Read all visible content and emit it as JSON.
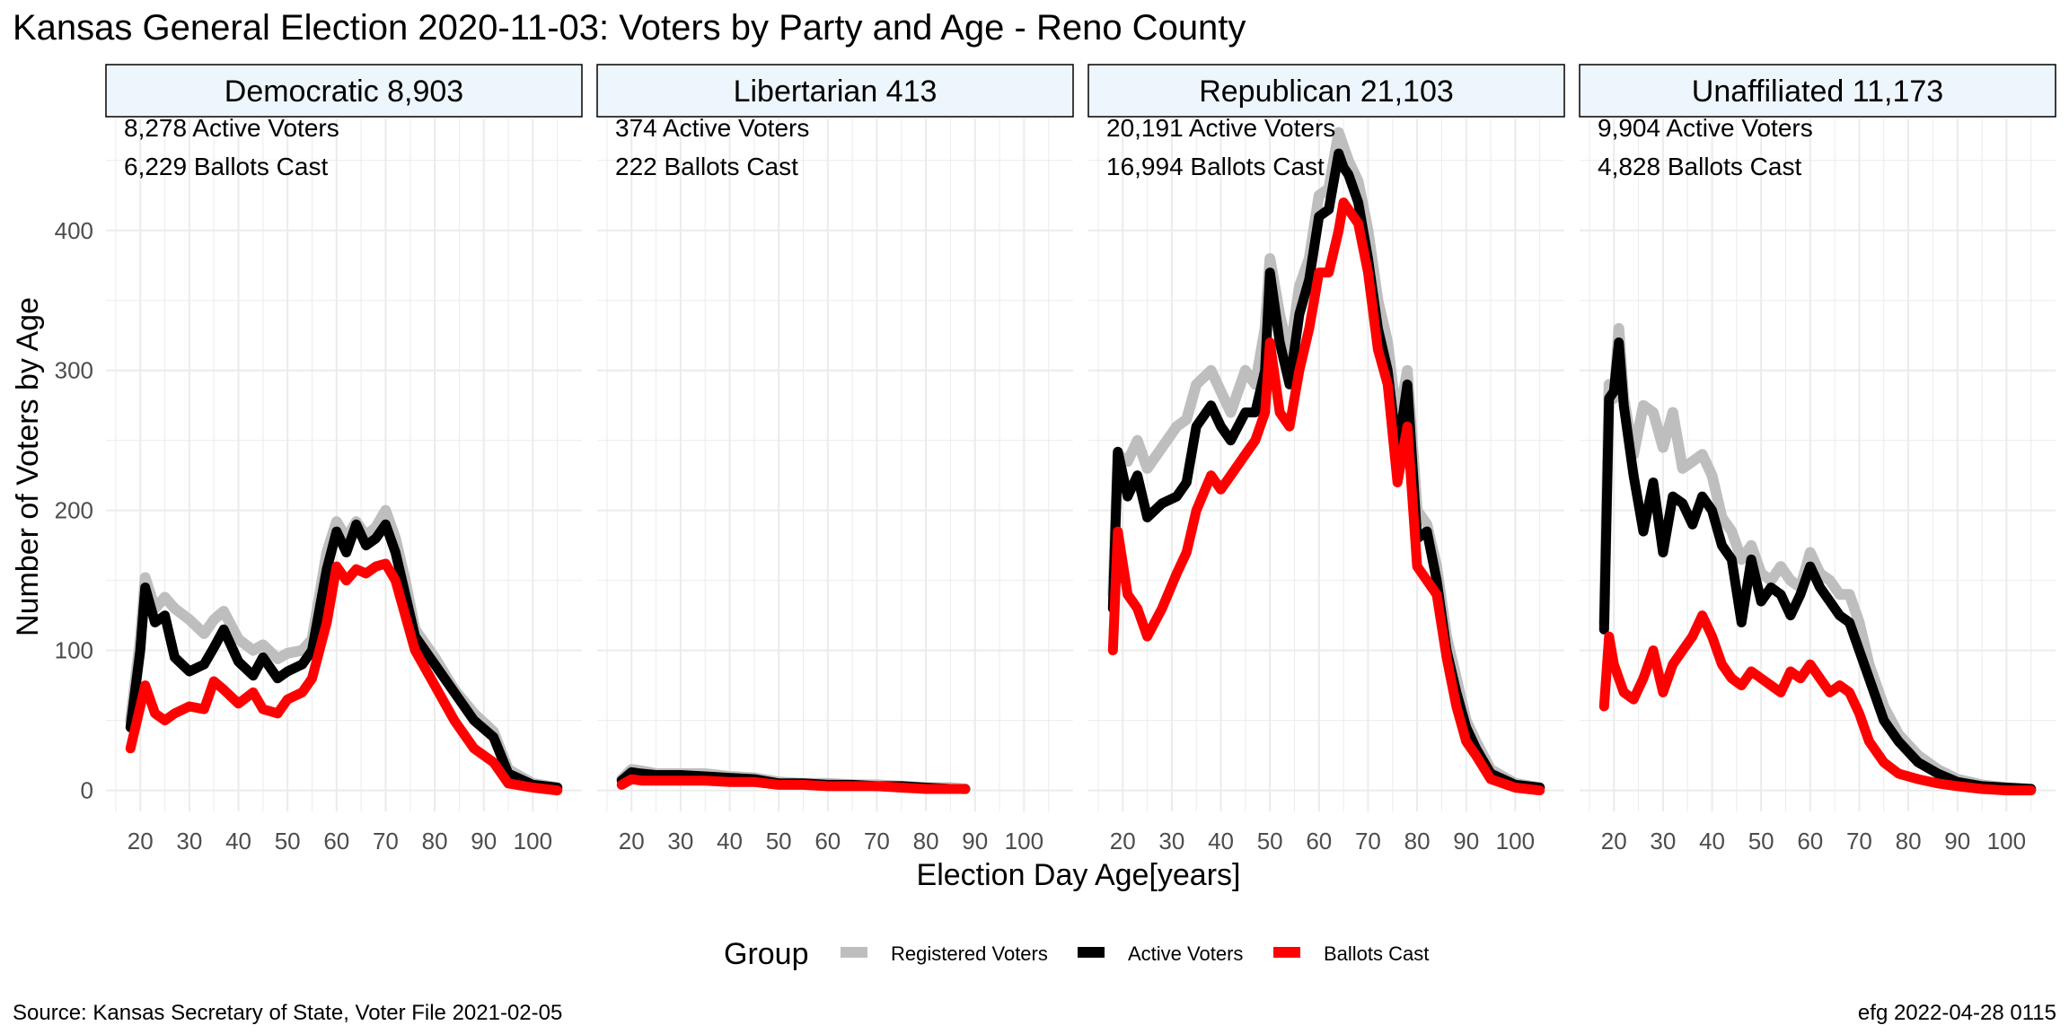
{
  "page": {
    "title": "Kansas General Election 2020-11-03:  Voters by Party and Age - Reno County",
    "source": "Source:  Kansas Secretary of State, Voter File  2021-02-05",
    "credit": "efg 2022-04-28 0115"
  },
  "legend": {
    "title": "Group",
    "items": [
      {
        "label": "Registered Voters",
        "color": "#bebebe"
      },
      {
        "label": "Active Voters",
        "color": "#000000"
      },
      {
        "label": "Ballots Cast",
        "color": "#ff0000"
      }
    ]
  },
  "colors": {
    "registered": "#bebebe",
    "active": "#000000",
    "ballots": "#ff0000",
    "strip_fill": "#eef6fd",
    "grid": "#ebebeb"
  },
  "chart_data": {
    "type": "line",
    "xlabel": "Election Day Age[years]",
    "ylabel": "Number of Voters by Age",
    "xlim": [
      13,
      110
    ],
    "ylim": [
      -15,
      480
    ],
    "x_ticks": [
      20,
      30,
      40,
      50,
      60,
      70,
      80,
      90,
      100
    ],
    "y_ticks": [
      0,
      100,
      200,
      300,
      400
    ],
    "legend_position": "bottom",
    "panels": [
      {
        "strip": "Democratic 8,903",
        "annotations": [
          "8,278 Active Voters",
          "6,229 Ballots Cast"
        ],
        "series": [
          {
            "name": "Registered Voters",
            "x": [
              18,
              20,
              21,
              23,
              25,
              27,
              30,
              33,
              35,
              37,
              40,
              43,
              45,
              48,
              50,
              53,
              55,
              58,
              60,
              62,
              64,
              66,
              68,
              70,
              72,
              74,
              76,
              80,
              84,
              88,
              92,
              95,
              100,
              105
            ],
            "y": [
              50,
              108,
              152,
              130,
              138,
              130,
              122,
              112,
              122,
              128,
              108,
              100,
              104,
              94,
              98,
              100,
              108,
              170,
              192,
              180,
              192,
              182,
              188,
              200,
              180,
              150,
              115,
              95,
              72,
              55,
              42,
              15,
              5,
              2
            ]
          },
          {
            "name": "Active Voters",
            "x": [
              18,
              20,
              21,
              23,
              25,
              27,
              30,
              33,
              35,
              37,
              40,
              43,
              45,
              48,
              50,
              53,
              55,
              58,
              60,
              62,
              64,
              66,
              68,
              70,
              72,
              74,
              76,
              80,
              84,
              88,
              92,
              95,
              100,
              105
            ],
            "y": [
              45,
              100,
              145,
              120,
              125,
              95,
              85,
              90,
              102,
              115,
              92,
              82,
              95,
              80,
              85,
              90,
              100,
              158,
              185,
              170,
              190,
              175,
              180,
              190,
              170,
              140,
              110,
              90,
              70,
              50,
              38,
              12,
              4,
              2
            ]
          },
          {
            "name": "Ballots Cast",
            "x": [
              18,
              20,
              21,
              23,
              25,
              27,
              30,
              33,
              35,
              37,
              40,
              43,
              45,
              48,
              50,
              53,
              55,
              58,
              60,
              62,
              64,
              66,
              68,
              70,
              72,
              74,
              76,
              80,
              84,
              88,
              92,
              95,
              100,
              105
            ],
            "y": [
              30,
              60,
              75,
              55,
              50,
              55,
              60,
              58,
              78,
              72,
              62,
              70,
              58,
              55,
              65,
              70,
              80,
              120,
              160,
              150,
              158,
              155,
              160,
              162,
              150,
              125,
              100,
              75,
              50,
              30,
              20,
              5,
              2,
              0
            ]
          }
        ]
      },
      {
        "strip": "Libertarian 413",
        "annotations": [
          "374 Active Voters",
          "222 Ballots Cast"
        ],
        "series": [
          {
            "name": "Registered Voters",
            "x": [
              18,
              20,
              22,
              25,
              30,
              35,
              40,
              45,
              50,
              55,
              60,
              65,
              70,
              75,
              80,
              85,
              88
            ],
            "y": [
              8,
              15,
              14,
              12,
              12,
              12,
              10,
              9,
              6,
              5,
              5,
              4,
              4,
              3,
              2,
              2,
              1
            ]
          },
          {
            "name": "Active Voters",
            "x": [
              18,
              20,
              22,
              25,
              30,
              35,
              40,
              45,
              50,
              55,
              60,
              65,
              70,
              75,
              80,
              85,
              88
            ],
            "y": [
              7,
              13,
              12,
              11,
              11,
              10,
              9,
              8,
              5,
              5,
              4,
              4,
              3,
              3,
              2,
              1,
              1
            ]
          },
          {
            "name": "Ballots Cast",
            "x": [
              18,
              20,
              22,
              25,
              30,
              35,
              40,
              45,
              50,
              55,
              60,
              65,
              70,
              75,
              80,
              85,
              88
            ],
            "y": [
              4,
              8,
              7,
              7,
              7,
              7,
              6,
              6,
              4,
              4,
              3,
              3,
              3,
              2,
              1,
              1,
              1
            ]
          }
        ]
      },
      {
        "strip": "Republican 21,103",
        "annotations": [
          "20,191 Active Voters",
          "16,994 Ballots Cast"
        ],
        "series": [
          {
            "name": "Registered Voters",
            "x": [
              18,
              19,
              21,
              23,
              25,
              28,
              31,
              33,
              35,
              38,
              40,
              42,
              45,
              47,
              49,
              50,
              52,
              54,
              56,
              58,
              60,
              62,
              64,
              65,
              66,
              68,
              70,
              72,
              74,
              76,
              78,
              80,
              82,
              84,
              86,
              88,
              90,
              92,
              95,
              100,
              105
            ],
            "y": [
              140,
              240,
              235,
              250,
              230,
              245,
              260,
              265,
              290,
              300,
              285,
              270,
              300,
              290,
              330,
              380,
              340,
              310,
              360,
              380,
              425,
              430,
              470,
              460,
              450,
              435,
              400,
              350,
              320,
              260,
              300,
              200,
              190,
              160,
              110,
              80,
              50,
              35,
              15,
              5,
              2
            ]
          },
          {
            "name": "Active Voters",
            "x": [
              18,
              19,
              21,
              23,
              25,
              28,
              31,
              33,
              35,
              38,
              40,
              42,
              45,
              47,
              49,
              50,
              52,
              54,
              56,
              58,
              60,
              62,
              64,
              65,
              66,
              68,
              70,
              72,
              74,
              76,
              78,
              80,
              82,
              84,
              86,
              88,
              90,
              92,
              95,
              100,
              105
            ],
            "y": [
              130,
              242,
              210,
              225,
              195,
              205,
              210,
              220,
              260,
              275,
              260,
              250,
              270,
              270,
              300,
              370,
              320,
              290,
              340,
              365,
              410,
              415,
              455,
              445,
              440,
              420,
              380,
              330,
              300,
              240,
              290,
              180,
              185,
              150,
              100,
              70,
              45,
              30,
              12,
              4,
              2
            ]
          },
          {
            "name": "Ballots Cast",
            "x": [
              18,
              19,
              21,
              23,
              25,
              28,
              31,
              33,
              35,
              38,
              40,
              42,
              45,
              47,
              49,
              50,
              52,
              54,
              56,
              58,
              60,
              62,
              64,
              65,
              66,
              68,
              70,
              72,
              74,
              76,
              78,
              80,
              82,
              84,
              86,
              88,
              90,
              92,
              95,
              100,
              105
            ],
            "y": [
              100,
              185,
              140,
              130,
              110,
              130,
              155,
              170,
              200,
              225,
              215,
              225,
              240,
              250,
              270,
              320,
              270,
              260,
              300,
              330,
              370,
              370,
              400,
              420,
              415,
              405,
              370,
              315,
              290,
              220,
              260,
              160,
              150,
              140,
              95,
              60,
              35,
              25,
              8,
              2,
              0
            ]
          }
        ]
      },
      {
        "strip": "Unaffiliated 11,173",
        "annotations": [
          "9,904 Active Voters",
          "4,828 Ballots Cast"
        ],
        "series": [
          {
            "name": "Registered Voters",
            "x": [
              18,
              19,
              20,
              21,
              22,
              24,
              26,
              28,
              30,
              32,
              34,
              36,
              38,
              40,
              42,
              44,
              46,
              48,
              50,
              52,
              54,
              56,
              58,
              60,
              62,
              64,
              66,
              68,
              70,
              72,
              75,
              78,
              82,
              86,
              90,
              95,
              100,
              105
            ],
            "y": [
              120,
              290,
              280,
              330,
              280,
              240,
              275,
              270,
              245,
              270,
              230,
              235,
              240,
              225,
              195,
              185,
              165,
              175,
              155,
              150,
              160,
              150,
              145,
              170,
              155,
              150,
              140,
              140,
              120,
              90,
              60,
              40,
              25,
              15,
              8,
              4,
              2,
              1
            ]
          },
          {
            "name": "Active Voters",
            "x": [
              18,
              19,
              20,
              21,
              22,
              24,
              26,
              28,
              30,
              32,
              34,
              36,
              38,
              40,
              42,
              44,
              46,
              48,
              50,
              52,
              54,
              56,
              58,
              60,
              62,
              64,
              66,
              68,
              70,
              72,
              75,
              78,
              82,
              86,
              90,
              95,
              100,
              105
            ],
            "y": [
              115,
              280,
              285,
              320,
              275,
              225,
              185,
              220,
              170,
              210,
              205,
              190,
              210,
              200,
              175,
              165,
              120,
              165,
              135,
              145,
              140,
              125,
              140,
              160,
              145,
              135,
              125,
              120,
              100,
              80,
              50,
              35,
              20,
              12,
              6,
              3,
              2,
              1
            ]
          },
          {
            "name": "Ballots Cast",
            "x": [
              18,
              19,
              20,
              21,
              22,
              24,
              26,
              28,
              30,
              32,
              34,
              36,
              38,
              40,
              42,
              44,
              46,
              48,
              50,
              52,
              54,
              56,
              58,
              60,
              62,
              64,
              66,
              68,
              70,
              72,
              75,
              78,
              82,
              86,
              90,
              95,
              100,
              105
            ],
            "y": [
              60,
              110,
              90,
              80,
              70,
              65,
              80,
              100,
              70,
              90,
              100,
              110,
              125,
              110,
              90,
              80,
              75,
              85,
              80,
              75,
              70,
              85,
              80,
              90,
              80,
              70,
              75,
              70,
              55,
              35,
              20,
              12,
              8,
              5,
              3,
              1,
              0,
              0
            ]
          }
        ]
      }
    ]
  }
}
